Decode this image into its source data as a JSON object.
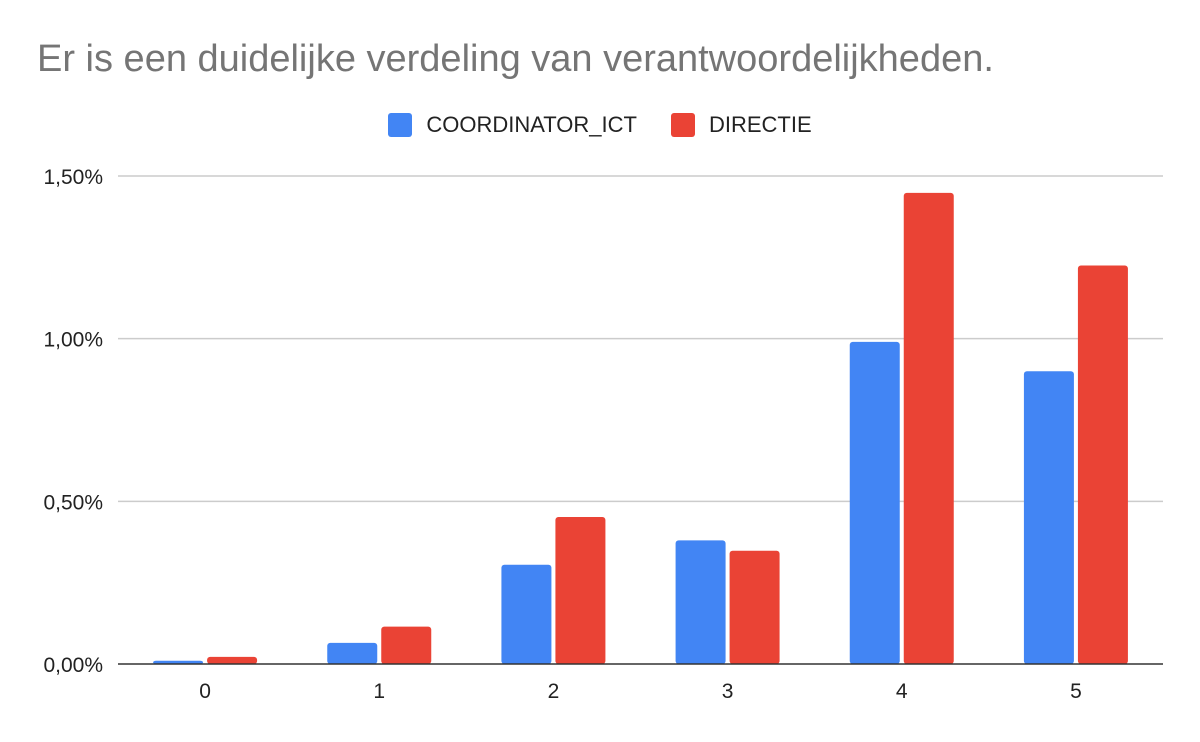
{
  "chart_data": {
    "type": "bar",
    "title": "Er is een duidelijke verdeling van verantwoordelijkheden.",
    "xlabel": "",
    "ylabel": "",
    "categories": [
      "0",
      "1",
      "2",
      "3",
      "4",
      "5"
    ],
    "series": [
      {
        "name": "COORDINATOR_ICT",
        "color": "#4285f4",
        "values": [
          0.01,
          0.065,
          0.305,
          0.38,
          0.99,
          0.9
        ]
      },
      {
        "name": "DIRECTIE",
        "color": "#ea4335",
        "values": [
          0.022,
          0.115,
          0.452,
          0.348,
          1.448,
          1.225
        ]
      }
    ],
    "ylim": [
      0,
      1.5
    ],
    "yticks": [
      {
        "value": 0,
        "label": "0,00%"
      },
      {
        "value": 0.5,
        "label": "0,50%"
      },
      {
        "value": 1.0,
        "label": "1,00%"
      },
      {
        "value": 1.5,
        "label": "1,50%"
      }
    ],
    "grid": true,
    "legend_position": "top-center"
  }
}
